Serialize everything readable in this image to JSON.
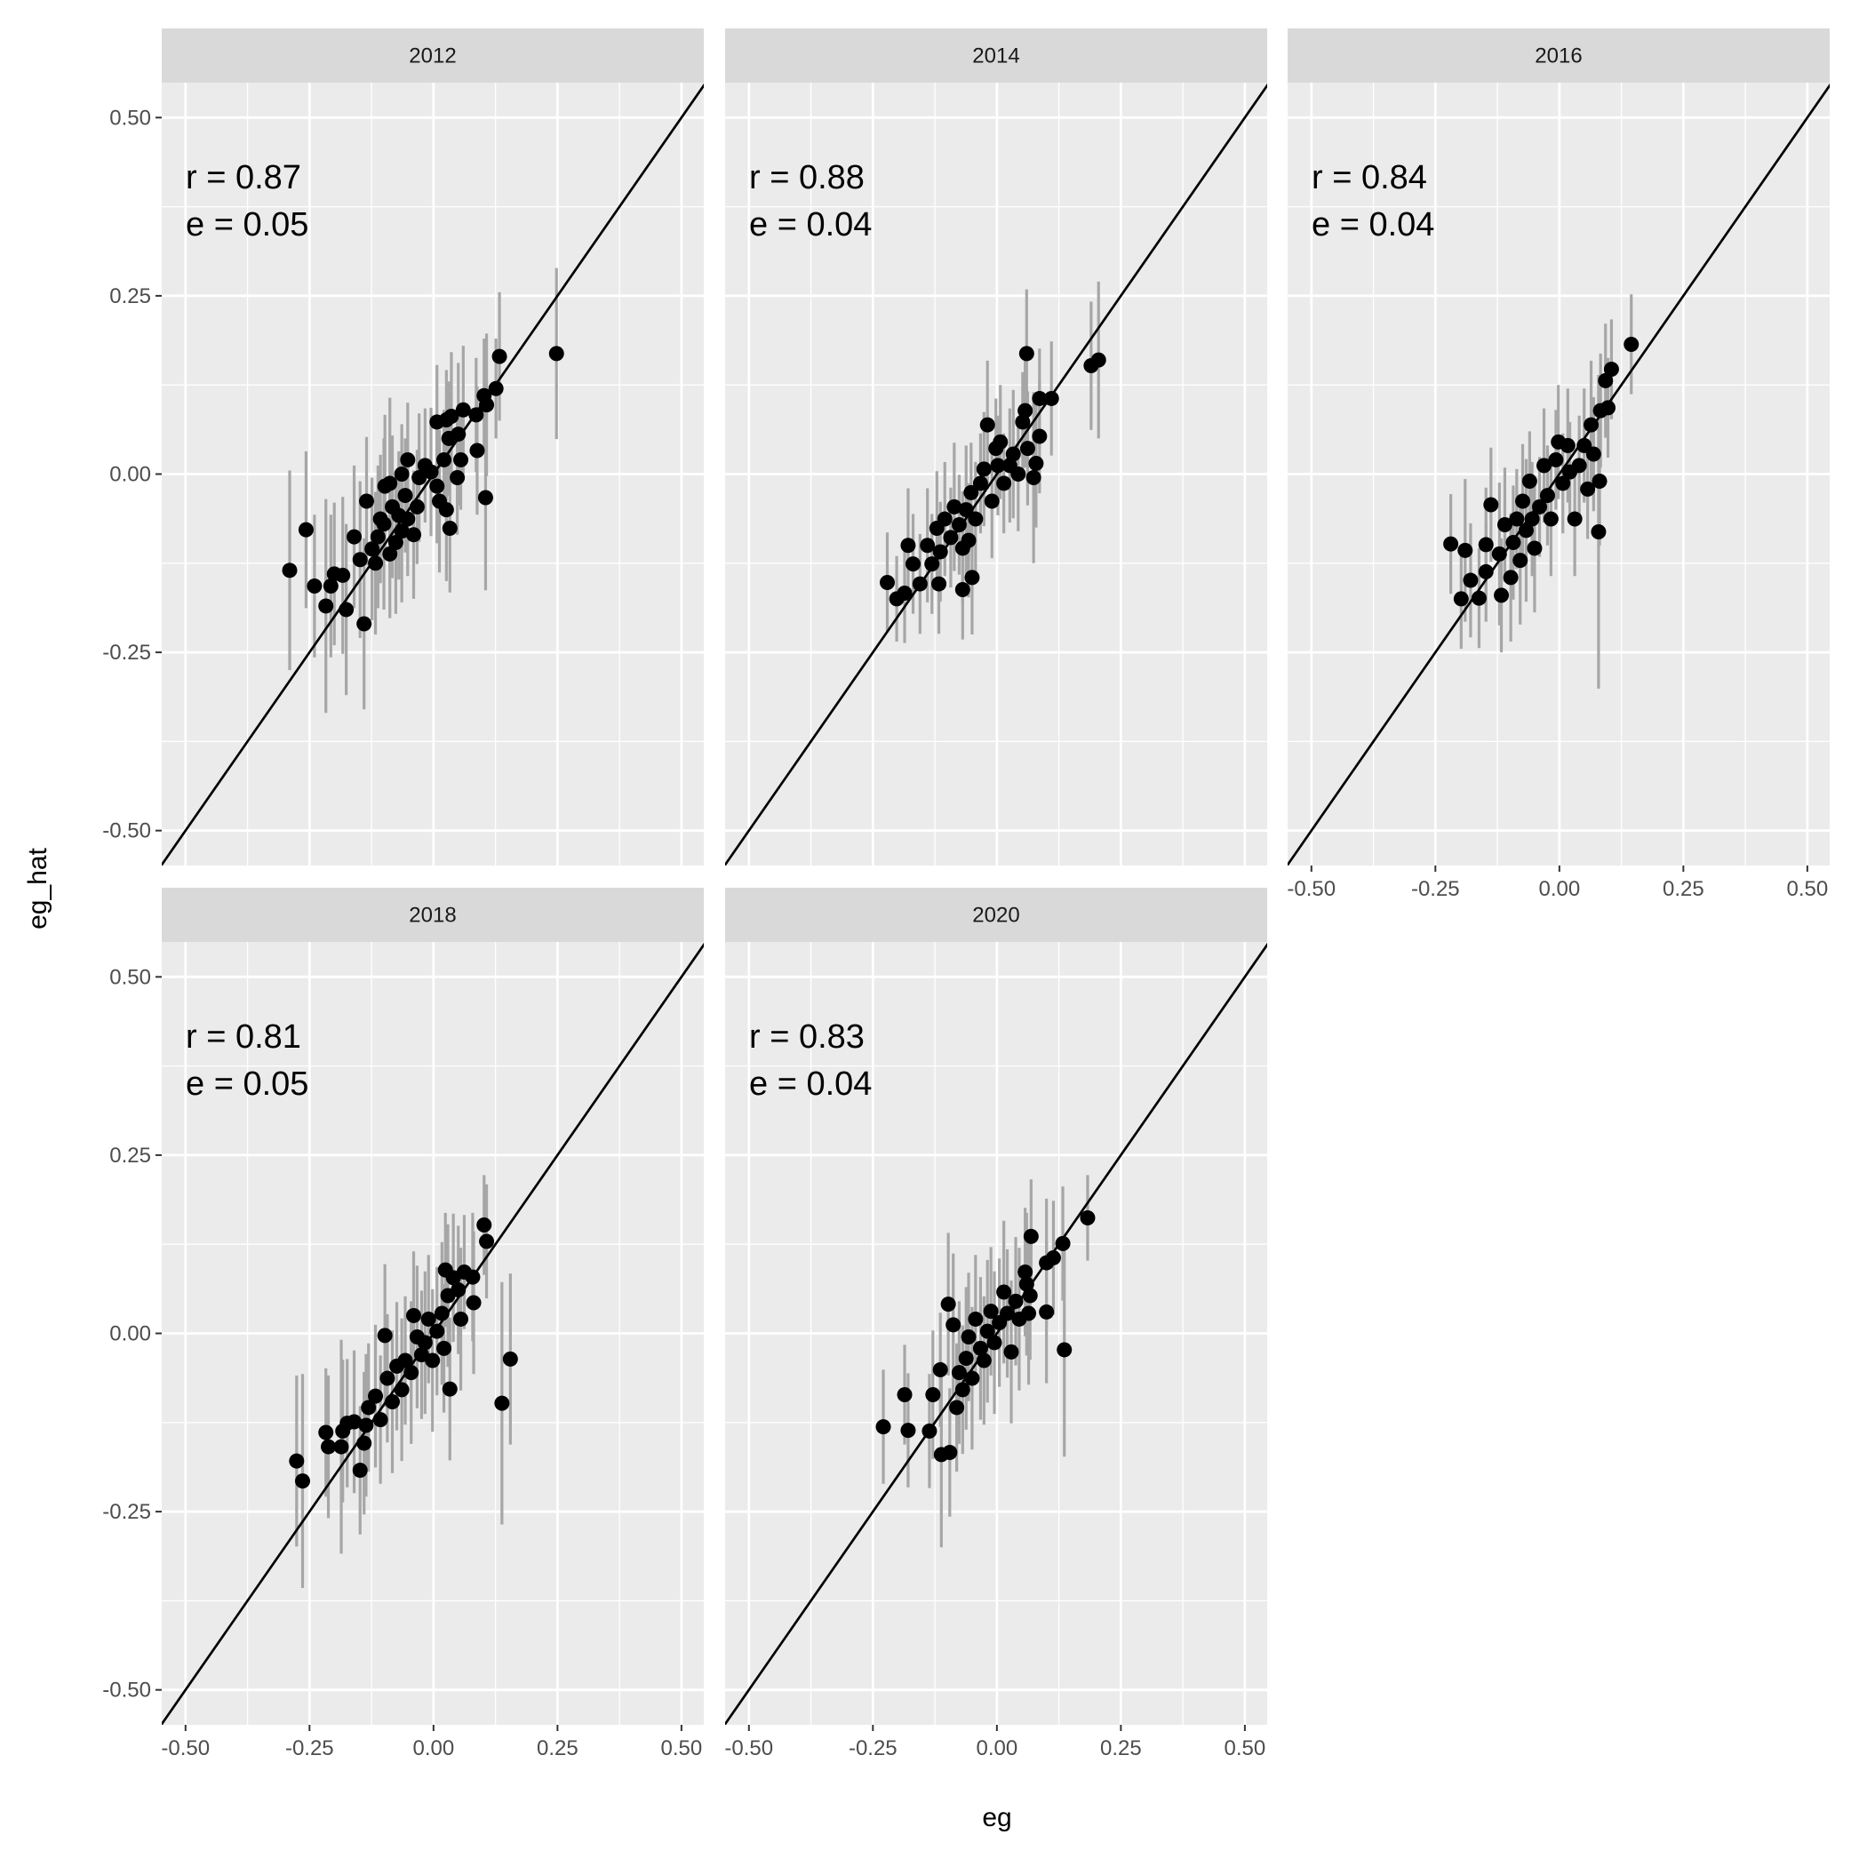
{
  "chart_data": {
    "type": "scatter",
    "xlabel": "eg",
    "ylabel": "eg_hat",
    "xlim": [
      -0.548,
      0.545
    ],
    "ylim": [
      -0.549,
      0.549
    ],
    "ticks": [
      -0.5,
      -0.25,
      0,
      0.25,
      0.5
    ],
    "tick_labels": [
      "-0.50",
      "-0.25",
      "0.00",
      "0.25",
      "0.50"
    ],
    "minor_ticks": [
      -0.375,
      -0.125,
      0.125,
      0.375
    ],
    "grid": true,
    "reference_line": "y = x",
    "point_format": "[eg, eg_hat, error_halfwidth]",
    "colors": {
      "panel_bg": "#ebebeb",
      "strip_bg": "#d9d9d9",
      "grid": "#ffffff",
      "errorbar": "#a6a6a6",
      "point": "#000000",
      "line": "#000000"
    },
    "panels": [
      {
        "title": "2012",
        "r_label": "r = 0.87",
        "e_label": "e = 0.05",
        "points": [
          [
            -0.29,
            -0.135,
            0.14
          ],
          [
            -0.257,
            -0.078,
            0.11
          ],
          [
            -0.24,
            -0.157,
            0.1
          ],
          [
            -0.217,
            -0.185,
            0.15
          ],
          [
            -0.2,
            -0.14,
            0.1
          ],
          [
            -0.176,
            -0.19,
            0.12
          ],
          [
            -0.14,
            -0.21,
            0.12
          ],
          [
            -0.135,
            -0.038,
            0.09
          ],
          [
            -0.16,
            -0.088,
            0.1
          ],
          [
            -0.148,
            -0.12,
            0.11
          ],
          [
            -0.124,
            -0.105,
            0.1
          ],
          [
            -0.112,
            -0.088,
            0.1
          ],
          [
            -0.1,
            -0.07,
            0.12
          ],
          [
            -0.088,
            -0.112,
            0.09
          ],
          [
            -0.076,
            -0.096,
            0.1
          ],
          [
            -0.07,
            -0.058,
            0.09
          ],
          [
            -0.064,
            -0.08,
            0.1
          ],
          [
            -0.052,
            -0.063,
            0.08
          ],
          [
            -0.04,
            -0.085,
            0.09
          ],
          [
            -0.033,
            -0.046,
            0.08
          ],
          [
            -0.098,
            -0.017,
            0.1
          ],
          [
            -0.088,
            -0.013,
            0.12
          ],
          [
            -0.057,
            -0.03,
            0.08
          ],
          [
            -0.052,
            0.02,
            0.08
          ],
          [
            -0.064,
            0.0,
            0.07
          ],
          [
            -0.029,
            -0.005,
            0.09
          ],
          [
            -0.017,
            0.012,
            0.08
          ],
          [
            -0.005,
            0.003,
            0.09
          ],
          [
            0.007,
            -0.017,
            0.08
          ],
          [
            0.012,
            -0.038,
            0.1
          ],
          [
            0.021,
            0.02,
            0.07
          ],
          [
            0.031,
            0.05,
            0.08
          ],
          [
            0.007,
            0.073,
            0.08
          ],
          [
            0.026,
            0.076,
            0.07
          ],
          [
            0.036,
            0.081,
            0.09
          ],
          [
            0.05,
            0.056,
            0.1
          ],
          [
            0.055,
            0.02,
            0.07
          ],
          [
            0.048,
            -0.005,
            0.08
          ],
          [
            0.026,
            -0.05,
            0.1
          ],
          [
            0.033,
            -0.076,
            0.09
          ],
          [
            0.06,
            0.09,
            0.09
          ],
          [
            0.086,
            0.083,
            0.08
          ],
          [
            0.088,
            0.033,
            0.09
          ],
          [
            0.102,
            0.11,
            0.08
          ],
          [
            0.107,
            0.097,
            0.1
          ],
          [
            0.126,
            0.12,
            0.07
          ],
          [
            0.105,
            -0.033,
            0.13
          ],
          [
            0.133,
            0.165,
            0.09
          ],
          [
            0.248,
            0.169,
            0.12
          ],
          [
            -0.207,
            -0.157,
            0.1
          ],
          [
            -0.183,
            -0.142,
            0.11
          ],
          [
            -0.117,
            -0.125,
            0.1
          ],
          [
            -0.107,
            -0.063,
            0.09
          ],
          [
            -0.083,
            -0.046,
            0.1
          ]
        ]
      },
      {
        "title": "2014",
        "r_label": "r = 0.88",
        "e_label": "e = 0.04",
        "points": [
          [
            -0.221,
            -0.152,
            0.07
          ],
          [
            -0.202,
            -0.175,
            0.06
          ],
          [
            -0.186,
            -0.167,
            0.07
          ],
          [
            -0.179,
            -0.1,
            0.08
          ],
          [
            -0.169,
            -0.126,
            0.07
          ],
          [
            -0.155,
            -0.154,
            0.07
          ],
          [
            -0.14,
            -0.1,
            0.08
          ],
          [
            -0.131,
            -0.126,
            0.07
          ],
          [
            -0.121,
            -0.076,
            0.08
          ],
          [
            -0.114,
            -0.109,
            0.07
          ],
          [
            -0.105,
            -0.063,
            0.08
          ],
          [
            -0.093,
            -0.089,
            0.07
          ],
          [
            -0.086,
            -0.046,
            0.09
          ],
          [
            -0.076,
            -0.071,
            0.07
          ],
          [
            -0.069,
            -0.104,
            0.08
          ],
          [
            -0.069,
            -0.162,
            0.07
          ],
          [
            -0.05,
            -0.145,
            0.08
          ],
          [
            -0.062,
            -0.05,
            0.09
          ],
          [
            -0.052,
            -0.026,
            0.07
          ],
          [
            -0.043,
            -0.063,
            0.08
          ],
          [
            -0.033,
            -0.013,
            0.07
          ],
          [
            -0.026,
            0.007,
            0.08
          ],
          [
            -0.019,
            0.069,
            0.09
          ],
          [
            -0.01,
            -0.038,
            0.08
          ],
          [
            -0.002,
            0.036,
            0.07
          ],
          [
            0.007,
            0.045,
            0.08
          ],
          [
            0.014,
            -0.013,
            0.07
          ],
          [
            0.026,
            0.012,
            0.08
          ],
          [
            0.033,
            0.028,
            0.09
          ],
          [
            0.043,
            0.0,
            0.08
          ],
          [
            0.052,
            0.073,
            0.07
          ],
          [
            0.06,
            0.169,
            0.09
          ],
          [
            0.057,
            0.089,
            0.08
          ],
          [
            0.074,
            -0.005,
            0.12
          ],
          [
            0.086,
            0.053,
            0.08
          ],
          [
            0.086,
            0.106,
            0.07
          ],
          [
            0.11,
            0.106,
            0.08
          ],
          [
            0.079,
            0.015,
            0.09
          ],
          [
            0.062,
            0.036,
            0.08
          ],
          [
            0.19,
            0.152,
            0.09
          ],
          [
            0.205,
            0.16,
            0.11
          ],
          [
            0.002,
            0.012,
            0.07
          ],
          [
            -0.057,
            -0.093,
            0.08
          ],
          [
            -0.117,
            -0.154,
            0.07
          ]
        ]
      },
      {
        "title": "2016",
        "r_label": "r = 0.84",
        "e_label": "e = 0.04",
        "points": [
          [
            -0.219,
            -0.098,
            0.07
          ],
          [
            -0.19,
            -0.107,
            0.1
          ],
          [
            -0.198,
            -0.175,
            0.07
          ],
          [
            -0.179,
            -0.149,
            0.08
          ],
          [
            -0.162,
            -0.174,
            0.07
          ],
          [
            -0.148,
            -0.099,
            0.08
          ],
          [
            -0.138,
            -0.043,
            0.08
          ],
          [
            -0.148,
            -0.137,
            0.07
          ],
          [
            -0.117,
            -0.17,
            0.08
          ],
          [
            -0.121,
            -0.112,
            0.1
          ],
          [
            -0.11,
            -0.071,
            0.08
          ],
          [
            -0.098,
            -0.145,
            0.09
          ],
          [
            -0.093,
            -0.096,
            0.08
          ],
          [
            -0.086,
            -0.063,
            0.07
          ],
          [
            -0.079,
            -0.121,
            0.09
          ],
          [
            -0.074,
            -0.038,
            0.08
          ],
          [
            -0.067,
            -0.079,
            0.1
          ],
          [
            -0.06,
            -0.01,
            0.07
          ],
          [
            -0.055,
            -0.063,
            0.08
          ],
          [
            -0.05,
            -0.104,
            0.09
          ],
          [
            -0.04,
            -0.046,
            0.07
          ],
          [
            -0.031,
            0.012,
            0.08
          ],
          [
            -0.024,
            -0.03,
            0.07
          ],
          [
            -0.017,
            -0.063,
            0.08
          ],
          [
            -0.007,
            0.02,
            0.07
          ],
          [
            -0.002,
            0.045,
            0.08
          ],
          [
            0.007,
            -0.013,
            0.07
          ],
          [
            0.017,
            0.04,
            0.08
          ],
          [
            0.021,
            0.003,
            0.07
          ],
          [
            0.031,
            -0.063,
            0.08
          ],
          [
            0.04,
            0.012,
            0.07
          ],
          [
            0.05,
            0.04,
            0.08
          ],
          [
            0.064,
            0.069,
            0.09
          ],
          [
            0.057,
            -0.021,
            0.07
          ],
          [
            0.069,
            0.028,
            0.08
          ],
          [
            0.081,
            -0.01,
            0.09
          ],
          [
            0.079,
            -0.081,
            0.22
          ],
          [
            0.083,
            0.089,
            0.08
          ],
          [
            0.098,
            0.093,
            0.07
          ],
          [
            0.093,
            0.131,
            0.08
          ],
          [
            0.105,
            0.147,
            0.07
          ],
          [
            0.145,
            0.182,
            0.07
          ]
        ]
      },
      {
        "title": "2018",
        "r_label": "r = 0.81",
        "e_label": "e = 0.05",
        "points": [
          [
            -0.276,
            -0.179,
            0.12
          ],
          [
            -0.264,
            -0.207,
            0.15
          ],
          [
            -0.217,
            -0.139,
            0.09
          ],
          [
            -0.212,
            -0.159,
            0.1
          ],
          [
            -0.186,
            -0.159,
            0.15
          ],
          [
            -0.174,
            -0.126,
            0.09
          ],
          [
            -0.16,
            -0.124,
            0.1
          ],
          [
            -0.148,
            -0.192,
            0.09
          ],
          [
            -0.14,
            -0.154,
            0.1
          ],
          [
            -0.131,
            -0.104,
            0.09
          ],
          [
            -0.117,
            -0.088,
            0.1
          ],
          [
            -0.107,
            -0.121,
            0.09
          ],
          [
            -0.098,
            -0.003,
            0.1
          ],
          [
            -0.093,
            -0.063,
            0.09
          ],
          [
            -0.083,
            -0.096,
            0.1
          ],
          [
            -0.074,
            -0.046,
            0.09
          ],
          [
            -0.064,
            -0.079,
            0.1
          ],
          [
            -0.057,
            -0.038,
            0.09
          ],
          [
            -0.045,
            -0.055,
            0.1
          ],
          [
            -0.04,
            0.025,
            0.09
          ],
          [
            -0.033,
            -0.005,
            0.1
          ],
          [
            -0.024,
            -0.03,
            0.09
          ],
          [
            -0.017,
            -0.013,
            0.1
          ],
          [
            -0.01,
            0.02,
            0.09
          ],
          [
            -0.002,
            -0.038,
            0.1
          ],
          [
            0.007,
            0.003,
            0.09
          ],
          [
            0.017,
            0.028,
            0.1
          ],
          [
            0.021,
            -0.021,
            0.09
          ],
          [
            0.029,
            0.053,
            0.1
          ],
          [
            0.024,
            0.089,
            0.08
          ],
          [
            0.033,
            -0.078,
            0.1
          ],
          [
            0.04,
            0.078,
            0.09
          ],
          [
            0.05,
            0.061,
            0.09
          ],
          [
            0.055,
            0.02,
            0.1
          ],
          [
            0.062,
            0.086,
            0.08
          ],
          [
            0.079,
            0.079,
            0.09
          ],
          [
            0.081,
            0.043,
            0.1
          ],
          [
            0.102,
            0.152,
            0.07
          ],
          [
            0.107,
            0.129,
            0.08
          ],
          [
            0.138,
            -0.098,
            0.17
          ],
          [
            0.155,
            -0.036,
            0.12
          ],
          [
            -0.183,
            -0.137,
            0.1
          ],
          [
            -0.136,
            -0.129,
            0.1
          ]
        ]
      },
      {
        "title": "2020",
        "r_label": "r = 0.83",
        "e_label": "e = 0.04",
        "points": [
          [
            -0.229,
            -0.131,
            0.08
          ],
          [
            -0.186,
            -0.086,
            0.07
          ],
          [
            -0.179,
            -0.136,
            0.08
          ],
          [
            -0.136,
            -0.137,
            0.08
          ],
          [
            -0.129,
            -0.086,
            0.09
          ],
          [
            -0.114,
            -0.051,
            0.08
          ],
          [
            -0.112,
            -0.17,
            0.13
          ],
          [
            -0.098,
            0.041,
            0.1
          ],
          [
            -0.095,
            -0.167,
            0.09
          ],
          [
            -0.088,
            0.012,
            0.1
          ],
          [
            -0.081,
            -0.104,
            0.09
          ],
          [
            -0.076,
            -0.055,
            0.1
          ],
          [
            -0.069,
            -0.079,
            0.09
          ],
          [
            -0.062,
            -0.035,
            0.1
          ],
          [
            -0.057,
            -0.005,
            0.09
          ],
          [
            -0.05,
            -0.063,
            0.1
          ],
          [
            -0.043,
            0.02,
            0.09
          ],
          [
            -0.033,
            -0.021,
            0.1
          ],
          [
            -0.026,
            -0.038,
            0.09
          ],
          [
            -0.019,
            0.003,
            0.1
          ],
          [
            -0.012,
            0.031,
            0.09
          ],
          [
            -0.005,
            -0.013,
            0.1
          ],
          [
            0.005,
            0.015,
            0.09
          ],
          [
            0.014,
            0.058,
            0.1
          ],
          [
            0.021,
            0.028,
            0.09
          ],
          [
            0.029,
            -0.026,
            0.1
          ],
          [
            0.038,
            0.045,
            0.09
          ],
          [
            0.045,
            0.02,
            0.1
          ],
          [
            0.057,
            0.086,
            0.09
          ],
          [
            0.06,
            0.069,
            0.1
          ],
          [
            0.067,
            0.053,
            0.09
          ],
          [
            0.064,
            0.028,
            0.1
          ],
          [
            0.069,
            0.136,
            0.08
          ],
          [
            0.1,
            0.03,
            0.1
          ],
          [
            0.1,
            0.099,
            0.09
          ],
          [
            0.114,
            0.106,
            0.08
          ],
          [
            0.133,
            0.126,
            0.08
          ],
          [
            0.136,
            -0.023,
            0.15
          ],
          [
            0.183,
            0.162,
            0.06
          ]
        ]
      }
    ]
  }
}
